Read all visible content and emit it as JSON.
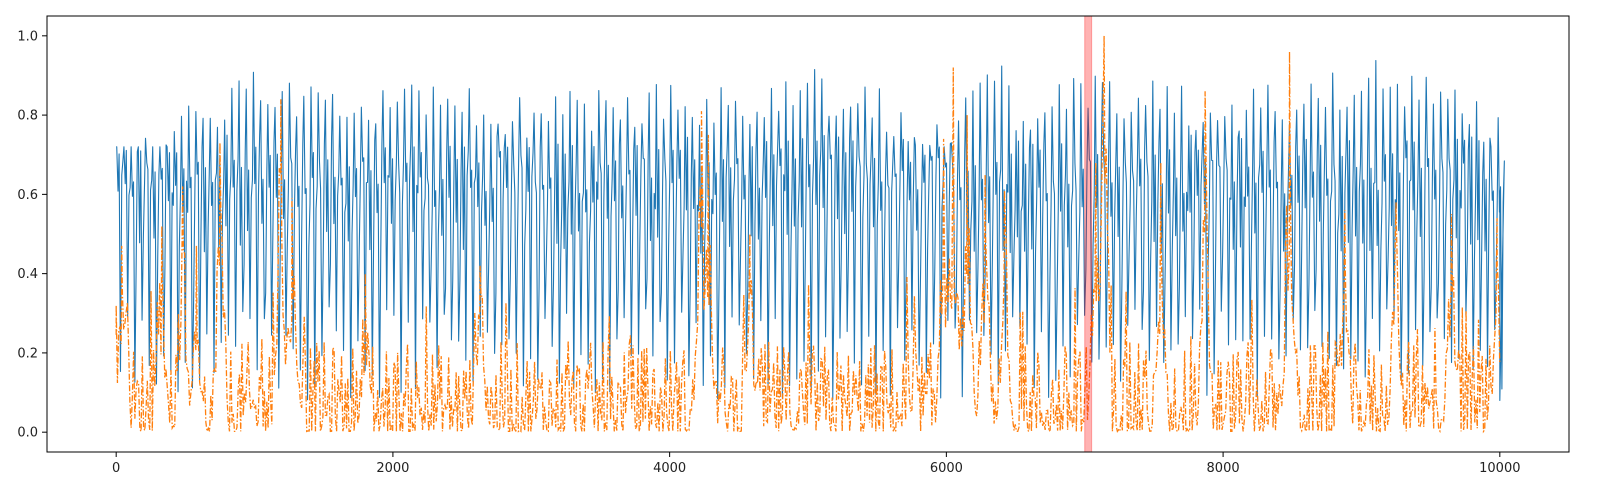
{
  "chart_data": {
    "type": "line",
    "title": "",
    "xlabel": "",
    "ylabel": "",
    "xlim": [
      -500,
      10500
    ],
    "ylim": [
      -0.05,
      1.05
    ],
    "x_ticks": [
      0,
      2000,
      4000,
      6000,
      8000,
      10000
    ],
    "x_tick_labels": [
      "0",
      "2000",
      "4000",
      "6000",
      "8000",
      "10000"
    ],
    "y_ticks": [
      0.0,
      0.2,
      0.4,
      0.6,
      0.8,
      1.0
    ],
    "y_tick_labels": [
      "0.0",
      "0.2",
      "0.4",
      "0.6",
      "0.8",
      "1.0"
    ],
    "grid": false,
    "legend": "none",
    "x_range": [
      0,
      10000
    ],
    "series": [
      {
        "style": "solid",
        "color": "#1f77b4",
        "oscillation_period_x": 52,
        "peak_range": [
          0.78,
          0.93
        ],
        "trough_range": [
          0.08,
          0.32
        ],
        "x": [
          0,
          500,
          1000,
          1500,
          2000,
          2500,
          3000,
          3500,
          4000,
          4500,
          5000,
          5500,
          6000,
          6340,
          6500,
          7000,
          7500,
          8000,
          8500,
          9000,
          9500,
          10000
        ],
        "peak_envelope": [
          0.72,
          0.85,
          0.91,
          0.88,
          0.9,
          0.9,
          0.85,
          0.87,
          0.9,
          0.87,
          0.92,
          0.88,
          0.79,
          1.0,
          0.83,
          0.92,
          0.89,
          0.87,
          0.89,
          0.94,
          0.93,
          0.8
        ]
      },
      {
        "style": "dashdot",
        "color": "#ff7f0e",
        "baseline_range": [
          0.0,
          0.2
        ],
        "x": [
          0,
          40,
          330,
          480,
          580,
          750,
          1190,
          1270,
          1800,
          2630,
          4230,
          4280,
          4580,
          5980,
          6050,
          6150,
          6280,
          6420,
          7080,
          7140,
          7550,
          7870,
          8480,
          8880,
          9250,
          9650,
          9980
        ],
        "y": [
          0.32,
          0.47,
          0.52,
          0.62,
          0.47,
          0.73,
          0.84,
          0.59,
          0.4,
          0.42,
          0.81,
          0.75,
          0.5,
          0.74,
          0.92,
          0.8,
          0.65,
          0.61,
          0.68,
          1.0,
          0.68,
          0.86,
          0.96,
          0.56,
          0.58,
          0.55,
          0.54
        ]
      }
    ],
    "shaded_span": {
      "x_start": 7000,
      "x_end": 7050,
      "color": "#ff0000",
      "opacity": 0.3
    }
  }
}
